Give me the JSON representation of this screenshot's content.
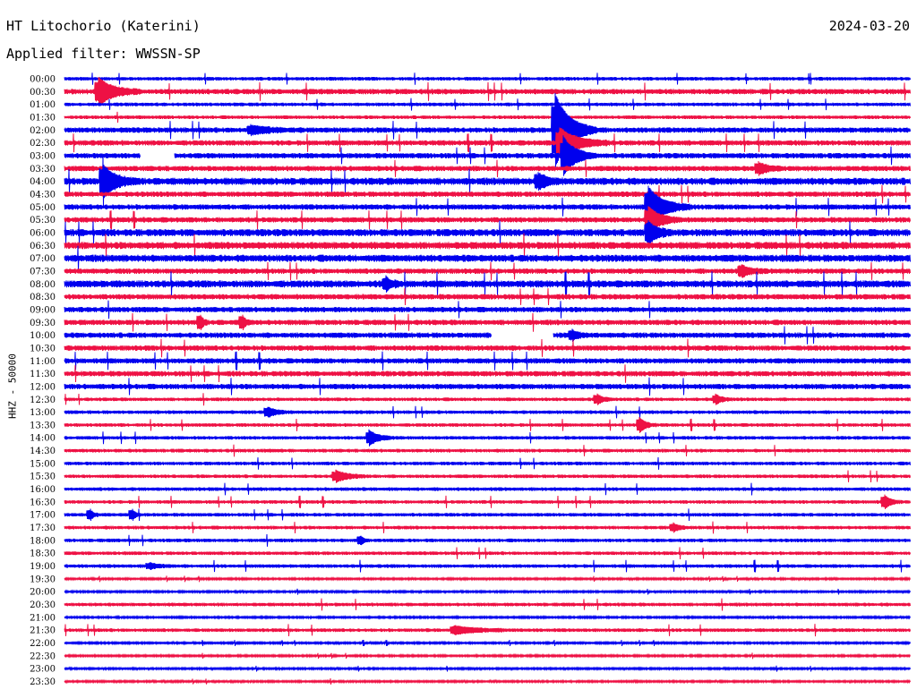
{
  "header": {
    "station": "HT Litochorio (Katerini)",
    "date": "2024-03-20",
    "filter": "Applied filter: WWSSN-SP"
  },
  "chart_data": {
    "type": "seismogram",
    "channel_label": "HHZ - 50000",
    "row_interval_minutes": 30,
    "colors": {
      "even": "#0000ee",
      "odd": "#ee1144"
    },
    "time_labels": [
      "00:00",
      "00:30",
      "01:00",
      "01:30",
      "02:00",
      "02:30",
      "03:00",
      "03:30",
      "04:00",
      "04:30",
      "05:00",
      "05:30",
      "06:00",
      "06:30",
      "07:00",
      "07:30",
      "08:00",
      "08:30",
      "09:00",
      "09:30",
      "10:00",
      "10:30",
      "11:00",
      "11:30",
      "12:00",
      "12:30",
      "13:00",
      "13:30",
      "14:00",
      "14:30",
      "15:00",
      "15:30",
      "16:00",
      "16:30",
      "17:00",
      "17:30",
      "18:00",
      "18:30",
      "19:00",
      "19:30",
      "20:00",
      "20:30",
      "21:00",
      "21:30",
      "22:00",
      "22:30",
      "23:00",
      "23:30"
    ],
    "noise_level": [
      2,
      3,
      2,
      2,
      3,
      3,
      3,
      3,
      4,
      3,
      3,
      3,
      4,
      4,
      4,
      3,
      4,
      3,
      3,
      3,
      3,
      3,
      3,
      3,
      3,
      2,
      2,
      2,
      2,
      2,
      2,
      2,
      2,
      2,
      2,
      2,
      2,
      2,
      2,
      1,
      1,
      2,
      1,
      2,
      1,
      1,
      1,
      1
    ],
    "events": [
      {
        "row": 1,
        "pos": 0.04,
        "amp": 14,
        "dur": 0.05
      },
      {
        "row": 4,
        "pos": 0.22,
        "amp": 4,
        "dur": 0.06
      },
      {
        "row": 4,
        "pos": 0.58,
        "amp": 40,
        "dur": 0.05
      },
      {
        "row": 5,
        "pos": 0.585,
        "amp": 16,
        "dur": 0.06
      },
      {
        "row": 6,
        "pos": 0.59,
        "amp": 20,
        "dur": 0.04
      },
      {
        "row": 7,
        "pos": 0.82,
        "amp": 6,
        "dur": 0.03
      },
      {
        "row": 8,
        "pos": 0.045,
        "amp": 18,
        "dur": 0.04
      },
      {
        "row": 8,
        "pos": 0.56,
        "amp": 8,
        "dur": 0.03
      },
      {
        "row": 10,
        "pos": 0.69,
        "amp": 22,
        "dur": 0.05
      },
      {
        "row": 11,
        "pos": 0.69,
        "amp": 14,
        "dur": 0.04
      },
      {
        "row": 12,
        "pos": 0.69,
        "amp": 12,
        "dur": 0.03
      },
      {
        "row": 15,
        "pos": 0.8,
        "amp": 6,
        "dur": 0.03
      },
      {
        "row": 16,
        "pos": 0.38,
        "amp": 6,
        "dur": 0.02
      },
      {
        "row": 19,
        "pos": 0.16,
        "amp": 8,
        "dur": 0.01
      },
      {
        "row": 19,
        "pos": 0.21,
        "amp": 8,
        "dur": 0.01
      },
      {
        "row": 20,
        "pos": 0.6,
        "amp": 5,
        "dur": 0.02
      },
      {
        "row": 25,
        "pos": 0.63,
        "amp": 5,
        "dur": 0.02
      },
      {
        "row": 25,
        "pos": 0.77,
        "amp": 5,
        "dur": 0.02
      },
      {
        "row": 26,
        "pos": 0.24,
        "amp": 5,
        "dur": 0.03
      },
      {
        "row": 27,
        "pos": 0.68,
        "amp": 8,
        "dur": 0.02
      },
      {
        "row": 28,
        "pos": 0.36,
        "amp": 8,
        "dur": 0.03
      },
      {
        "row": 31,
        "pos": 0.32,
        "amp": 6,
        "dur": 0.04
      },
      {
        "row": 33,
        "pos": 0.97,
        "amp": 7,
        "dur": 0.02
      },
      {
        "row": 34,
        "pos": 0.03,
        "amp": 6,
        "dur": 0.01
      },
      {
        "row": 34,
        "pos": 0.08,
        "amp": 6,
        "dur": 0.01
      },
      {
        "row": 35,
        "pos": 0.72,
        "amp": 4,
        "dur": 0.02
      },
      {
        "row": 36,
        "pos": 0.35,
        "amp": 5,
        "dur": 0.01
      },
      {
        "row": 38,
        "pos": 0.1,
        "amp": 3,
        "dur": 0.03
      },
      {
        "row": 43,
        "pos": 0.46,
        "amp": 4,
        "dur": 0.08
      }
    ],
    "gaps": [
      {
        "row": 6,
        "from": 0.09,
        "to": 0.13
      },
      {
        "row": 20,
        "from": 0.505,
        "to": 0.578
      }
    ]
  }
}
